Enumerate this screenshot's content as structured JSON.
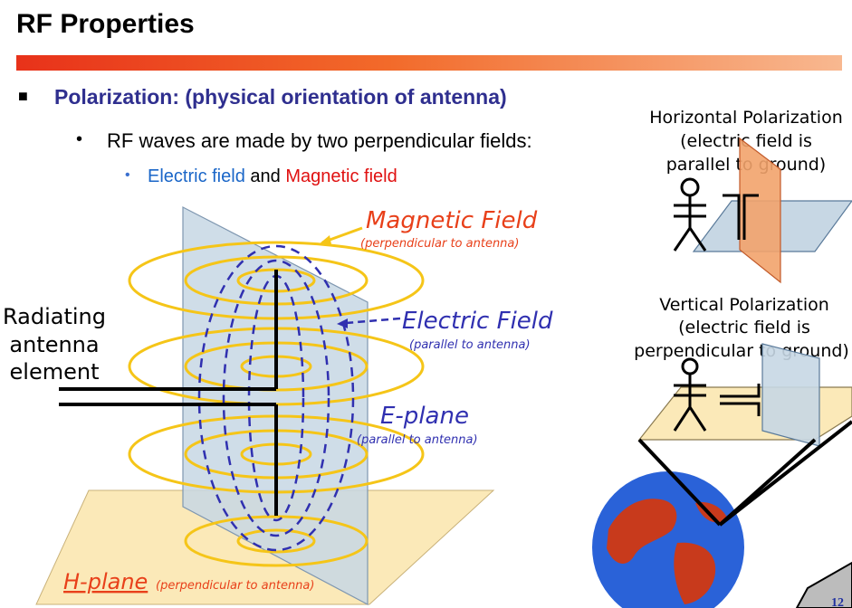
{
  "title": "RF Properties",
  "bullets": {
    "level1": "Polarization: (physical orientation of antenna)",
    "level2": "RF waves are made by two perpendicular fields:",
    "level3": {
      "electric": "Electric field",
      "and": "and",
      "magnetic": "Magnetic field"
    }
  },
  "diagram": {
    "antenna_label": [
      "Radiating",
      "antenna",
      "element"
    ],
    "magnetic_field": {
      "title": "Magnetic Field",
      "sub": "(perpendicular to antenna)"
    },
    "electric_field": {
      "title": "Electric Field",
      "sub": "(parallel to antenna)"
    },
    "e_plane": {
      "title": "E-plane",
      "sub": "(parallel to antenna)"
    },
    "h_plane": {
      "title": "H-plane",
      "sub": "(perpendicular to antenna)"
    }
  },
  "horizontal": {
    "lines": [
      "Horizontal Polarization",
      "(electric field is",
      "parallel to ground)"
    ]
  },
  "vertical": {
    "lines": [
      "Vertical Polarization",
      "(electric field is",
      "perpendicular to ground)"
    ]
  },
  "page_number": "12",
  "colors": {
    "title_bar_start": "#e8321a",
    "bullet_blue": "#2f2f8f",
    "electric_blue": "#1a66c8",
    "magnetic_red": "#e01010",
    "field_gold": "#f5c518",
    "label_red": "#e8401a",
    "label_blue": "#3030b0"
  }
}
